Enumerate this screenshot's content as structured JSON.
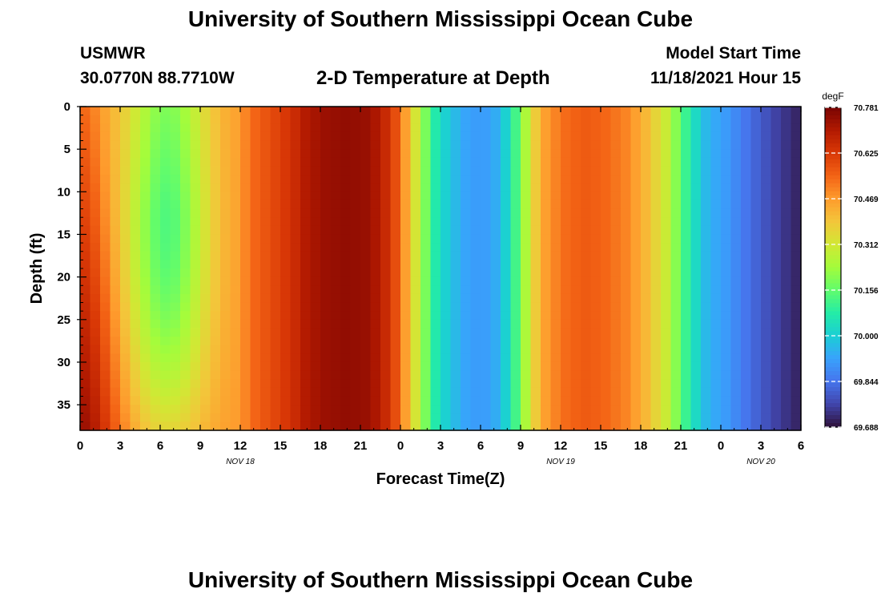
{
  "header": {
    "title": "University of Southern Mississippi Ocean Cube",
    "station": "USMWR",
    "coords": "30.0770N  88.7710W",
    "subtitle": "2-D Temperature at Depth",
    "start_label": "Model Start Time",
    "start_value": "11/18/2021 Hour 15"
  },
  "footer": {
    "title": "University of Southern Mississippi Ocean Cube"
  },
  "chart_data": {
    "type": "heatmap",
    "title": "2-D Temperature at Depth",
    "xlabel": "Forecast Time(Z)",
    "ylabel": "Depth (ft)",
    "x_hours_range": [
      0,
      54
    ],
    "x_ticks": [
      "0",
      "3",
      "6",
      "9",
      "12",
      "15",
      "18",
      "21",
      "0",
      "3",
      "6",
      "9",
      "12",
      "15",
      "18",
      "21",
      "0",
      "3",
      "6"
    ],
    "x_date_labels": [
      {
        "label": "NOV 18",
        "at_hour": 12
      },
      {
        "label": "NOV 19",
        "at_hour": 36
      },
      {
        "label": "NOV 20",
        "at_hour": 51
      }
    ],
    "y_range": [
      0,
      38
    ],
    "y_ticks": [
      0,
      5,
      10,
      15,
      20,
      25,
      30,
      35
    ],
    "y_inverted": true,
    "colorbar": {
      "unit": "degF",
      "min": 69.688,
      "max": 70.781,
      "tick_labels": [
        "70.781",
        "70.625",
        "70.469",
        "70.312",
        "70.156",
        "70.000",
        "69.844",
        "69.688"
      ],
      "colors": [
        "#30123b",
        "#4145ab",
        "#4675ed",
        "#39a2fc",
        "#1bcfd4",
        "#24eca6",
        "#61fc6c",
        "#a4fc3b",
        "#d1e834",
        "#f3c63a",
        "#fe9b2d",
        "#f36315",
        "#d93806",
        "#b11901",
        "#7a0403"
      ]
    }
  }
}
